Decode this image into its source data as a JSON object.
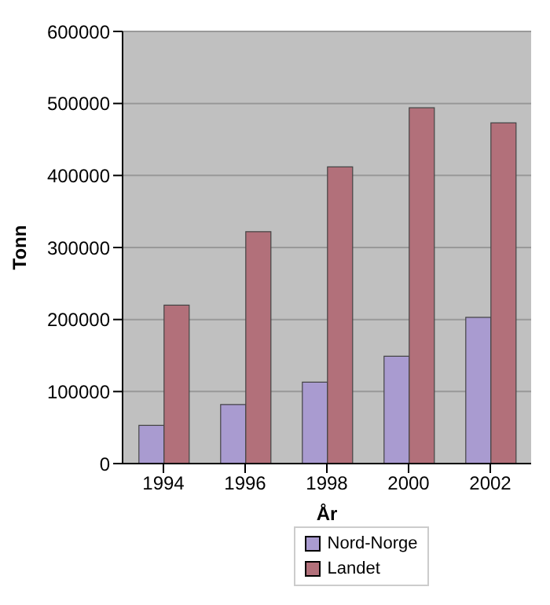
{
  "chart_data": {
    "type": "bar",
    "xlabel": "År",
    "ylabel": "Tonn",
    "categories": [
      "1994",
      "1996",
      "1998",
      "2000",
      "2002"
    ],
    "series": [
      {
        "name": "Nord-Norge",
        "color": "#a99bd0",
        "values": [
          53000,
          82000,
          113000,
          149000,
          203000
        ]
      },
      {
        "name": "Landet",
        "color": "#b2707a",
        "values": [
          220000,
          322000,
          412000,
          494000,
          473000
        ]
      }
    ],
    "ylim": [
      0,
      600000
    ],
    "yticks": [
      0,
      100000,
      200000,
      300000,
      400000,
      500000,
      600000
    ],
    "grid": "y",
    "legend": "bottom"
  }
}
